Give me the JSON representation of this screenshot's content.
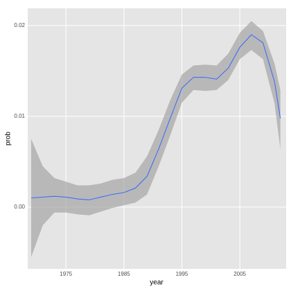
{
  "chart_data": {
    "type": "line",
    "x_label": "year",
    "y_label": "prob",
    "x": [
      1969,
      1971,
      1973,
      1975,
      1977,
      1979,
      1981,
      1983,
      1985,
      1987,
      1989,
      1991,
      1993,
      1995,
      1997,
      1999,
      2001,
      2003,
      2005,
      2007,
      2009,
      2011,
      2012
    ],
    "series": [
      {
        "color": "#3366ff",
        "values": [
          0.001,
          0.0011,
          0.0012,
          0.0011,
          0.0009,
          0.0008,
          0.0011,
          0.0014,
          0.0016,
          0.0021,
          0.0034,
          0.0064,
          0.0098,
          0.0131,
          0.0143,
          0.0143,
          0.0141,
          0.0153,
          0.0176,
          0.019,
          0.0181,
          0.0138,
          0.0098
        ]
      }
    ],
    "ribbon_color": "#999999",
    "ribbon_upper": [
      0.0075,
      0.0045,
      0.0032,
      0.0028,
      0.0024,
      0.0024,
      0.0026,
      0.003,
      0.0032,
      0.0038,
      0.0056,
      0.0085,
      0.0118,
      0.0146,
      0.0156,
      0.0157,
      0.0156,
      0.0169,
      0.0192,
      0.0205,
      0.0194,
      0.0158,
      0.0129
    ],
    "ribbon_lower": [
      -0.0055,
      -0.002,
      -0.0006,
      -0.0006,
      -0.0008,
      -0.0009,
      -0.0005,
      -0.0001,
      0.0002,
      0.0005,
      0.0014,
      0.0045,
      0.0079,
      0.0115,
      0.0129,
      0.0128,
      0.0129,
      0.014,
      0.0163,
      0.0173,
      0.0163,
      0.0114,
      0.0064
    ],
    "xlim": [
      1968.4,
      2013
    ],
    "ylim": [
      -0.0068,
      0.0219
    ],
    "xticks": [
      1975,
      1985,
      1995,
      2005
    ],
    "yticks": [
      {
        "value": 0,
        "label": "0.00"
      },
      {
        "value": 0.01,
        "label": "0.01"
      },
      {
        "value": 0.02,
        "label": "0.02"
      }
    ],
    "grid": true
  }
}
